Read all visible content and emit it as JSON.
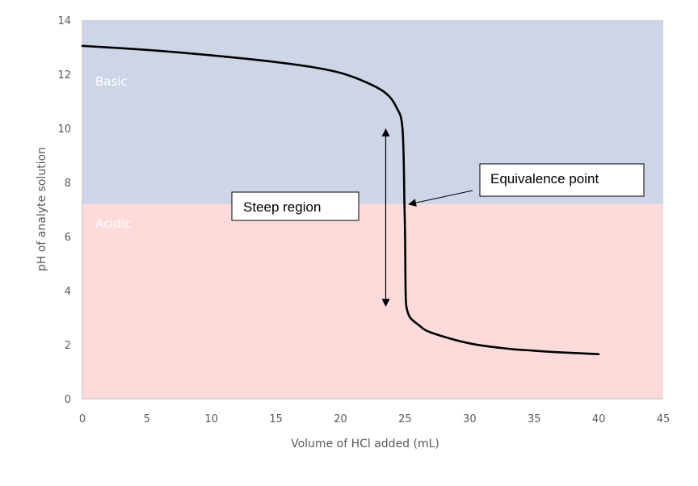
{
  "chart_data": {
    "type": "line",
    "title": "",
    "xlabel": "Volume of HCl added (mL)",
    "ylabel": "pH of analyte solution",
    "xlim": [
      0,
      45
    ],
    "ylim": [
      0,
      14
    ],
    "xticks": [
      0,
      5,
      10,
      15,
      20,
      25,
      30,
      35,
      40,
      45
    ],
    "yticks": [
      0,
      2,
      4,
      6,
      8,
      10,
      12,
      14
    ],
    "grid": false,
    "regions": [
      {
        "name": "Basic",
        "y_from": 7.2,
        "y_to": 14,
        "color": "#cdd5e7"
      },
      {
        "name": "Acidic",
        "y_from": 0,
        "y_to": 7.2,
        "color": "#fddbdb"
      }
    ],
    "series": [
      {
        "color": "#000000",
        "x": [
          0,
          5,
          10,
          15,
          18,
          20,
          22,
          23.5,
          24.3,
          24.8,
          24.95,
          25.0,
          25.05,
          25.15,
          25.4,
          26,
          27,
          30,
          33,
          35,
          37,
          40
        ],
        "y": [
          13.05,
          12.9,
          12.7,
          12.45,
          12.25,
          12.05,
          11.7,
          11.3,
          10.8,
          10.0,
          7.2,
          6.0,
          3.8,
          3.3,
          3.0,
          2.75,
          2.45,
          2.05,
          1.85,
          1.78,
          1.72,
          1.65
        ]
      }
    ],
    "annotations": {
      "equivalence": {
        "label": "Equivalence point",
        "point": [
          25.1,
          7.2
        ]
      },
      "steep": {
        "label": "Steep region",
        "arrow_x": 23.5,
        "arrow_y": [
          3.4,
          10.0
        ]
      }
    }
  }
}
